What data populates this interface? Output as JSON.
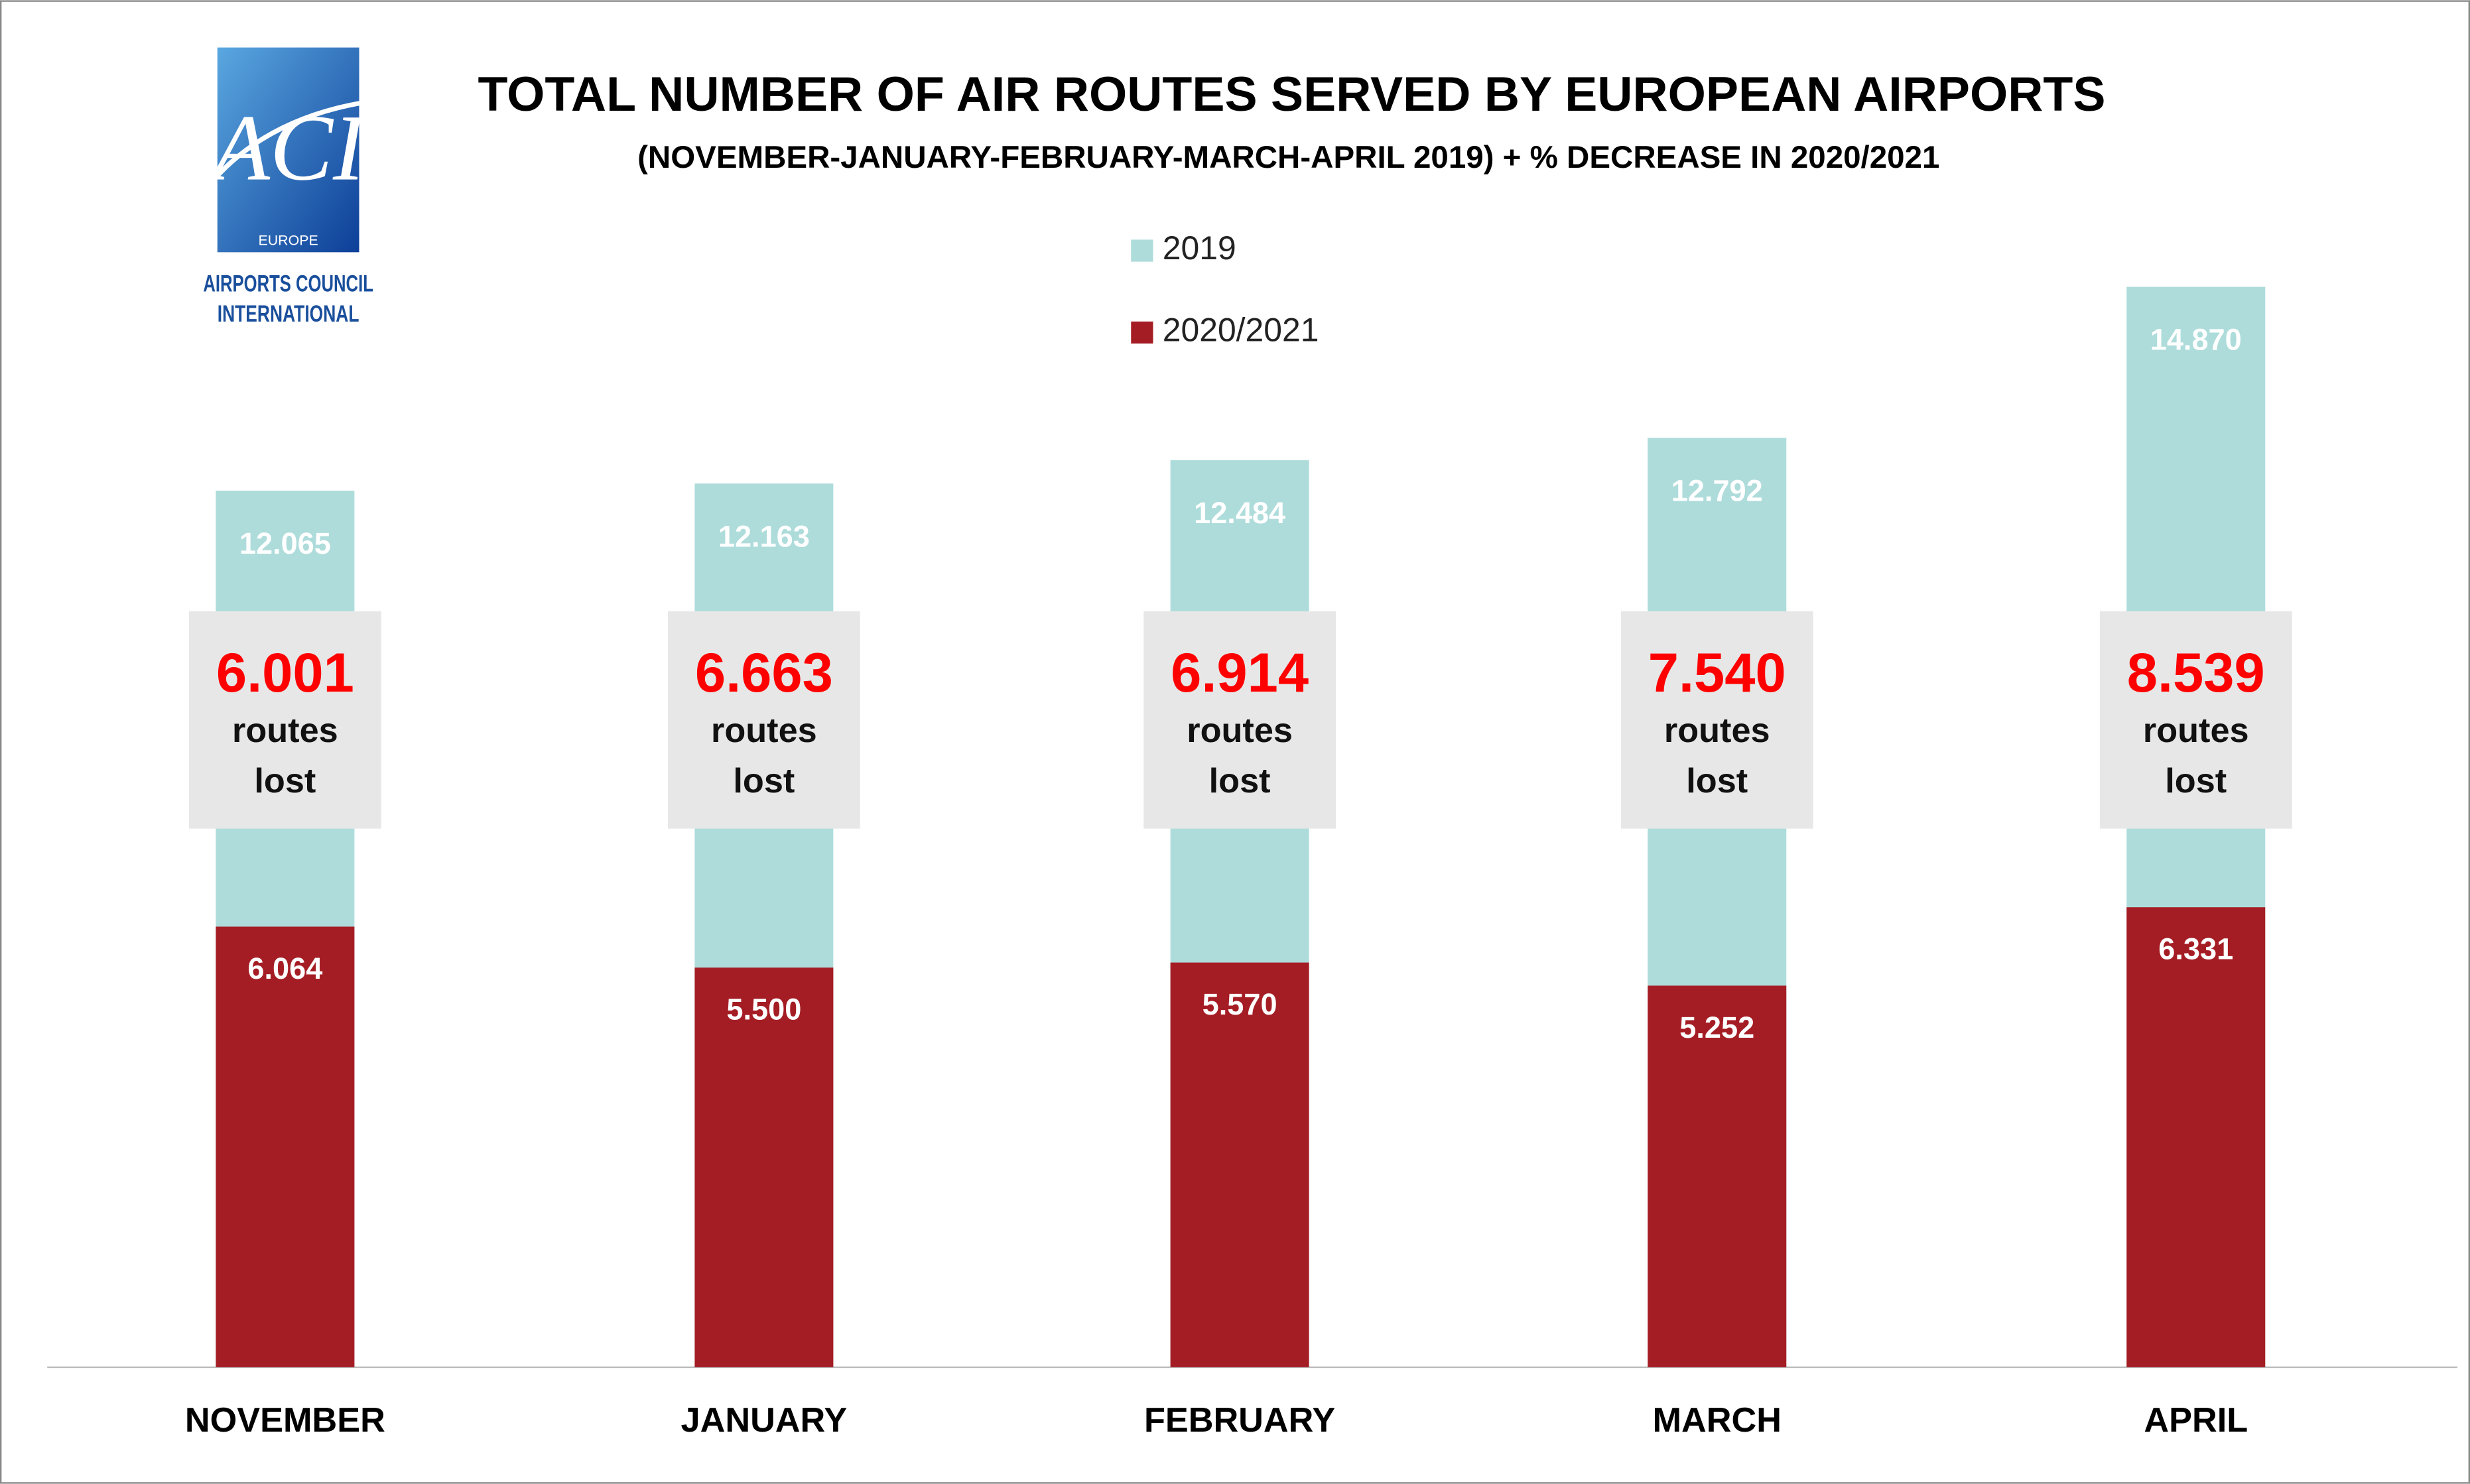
{
  "logo": {
    "mark": "ACI",
    "region": "EUROPE",
    "name_line1": "AIRPORTS COUNCIL",
    "name_line2": "INTERNATIONAL"
  },
  "chart_data": {
    "type": "bar",
    "title": "TOTAL NUMBER OF AIR ROUTES SERVED BY EUROPEAN AIRPORTS",
    "subtitle": "(NOVEMBER-JANUARY-FEBRUARY-MARCH-APRIL 2019) + % DECREASE IN 2020/2021",
    "categories": [
      "NOVEMBER",
      "JANUARY",
      "FEBRUARY",
      "MARCH",
      "APRIL"
    ],
    "series": [
      {
        "name": "2019",
        "color": "#aedcdb",
        "values": [
          12065,
          12163,
          12484,
          12792,
          14870
        ],
        "value_labels": [
          "12.065",
          "12.163",
          "12.484",
          "12.792",
          "14.870"
        ]
      },
      {
        "name": "2020/2021",
        "color": "#a51d24",
        "values": [
          6064,
          5500,
          5570,
          5252,
          6331
        ],
        "value_labels": [
          "6.064",
          "5.500",
          "5.570",
          "5.252",
          "6.331"
        ]
      }
    ],
    "annotations": {
      "values": [
        6001,
        6663,
        6914,
        7540,
        8539
      ],
      "value_labels": [
        "6.001",
        "6.663",
        "6.914",
        "7.540",
        "8.539"
      ],
      "text": "routes lost",
      "color": "#ff0000"
    },
    "ylim": [
      0,
      15000
    ]
  }
}
